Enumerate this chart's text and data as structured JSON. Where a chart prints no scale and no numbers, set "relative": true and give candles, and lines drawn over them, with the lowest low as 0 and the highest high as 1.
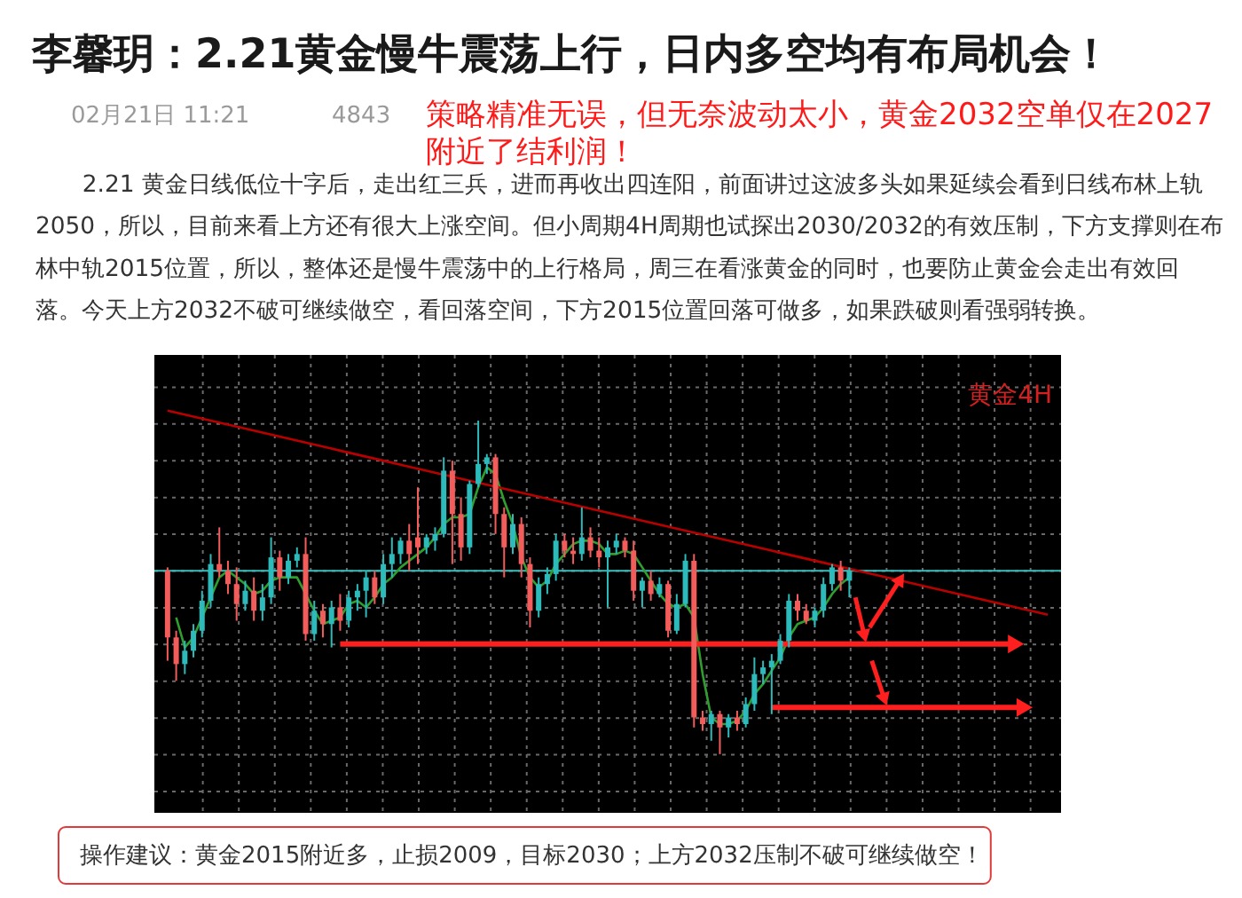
{
  "chart_data": {
    "type": "candlestick",
    "title": "李馨玥：2.21黄金慢牛震荡上行，日内多空均有布局机会！",
    "annotations": [
      "02月21日 11:21",
      "4843",
      "策略精准无误，但无奈波动太小，黄金2032空单仅在2027附近了结利润！",
      "2.21 黄金日线低位十字后，走出红三兵，进而再收出四连阳，前面讲过这波多头如果延续会看到日线布林上轨2050，所以，目前来看上方还有很大上涨空间。但小周期4H周期也试探出2030/2032的有效压制，下方支撑则在布林中轨2015位置，所以，整体还是慢牛震荡中的上行格局，周三在看涨黄金的同时，也要防止黄金会走出有效回落。今天上方2032不破可继续做空，看回落空间，下方2015位置回落可做多，如果跌破则看强弱转换。",
      "黄金4H",
      "操作建议：黄金2015附近多，止损2009，目标2030；上方2032压制不破可继续做空！"
    ],
    "relative": true,
    "grid": true,
    "categories": [
      null,
      null,
      null,
      null,
      null,
      null,
      null,
      null,
      null,
      null,
      null,
      null,
      null,
      null,
      null,
      null,
      null,
      null,
      null,
      null,
      null,
      null,
      null,
      null,
      null,
      null,
      null,
      null,
      null,
      null,
      null,
      null,
      null,
      null,
      null,
      null,
      null,
      null,
      null,
      null,
      null,
      null,
      null,
      null,
      null,
      null,
      null,
      null,
      null,
      null,
      null,
      null,
      null,
      null,
      null,
      null,
      null,
      null,
      null,
      null,
      null,
      null,
      null,
      null,
      null,
      null,
      null,
      null,
      null,
      null,
      null,
      null,
      null,
      null,
      null,
      null,
      null,
      null,
      null,
      null,
      null,
      null,
      null,
      null,
      null,
      null,
      null,
      null,
      null,
      null,
      null,
      null,
      null,
      null,
      null,
      null,
      null,
      null,
      null,
      null,
      null,
      null,
      null
    ],
    "ohlc": [
      [
        0.55,
        0.56,
        0.28,
        0.35
      ],
      [
        0.35,
        0.37,
        0.22,
        0.27
      ],
      [
        0.27,
        0.34,
        0.24,
        0.31
      ],
      [
        0.31,
        0.39,
        0.29,
        0.37
      ],
      [
        0.37,
        0.49,
        0.35,
        0.46
      ],
      [
        0.46,
        0.6,
        0.44,
        0.57
      ],
      [
        0.57,
        0.68,
        0.53,
        0.55
      ],
      [
        0.55,
        0.58,
        0.48,
        0.51
      ],
      [
        0.51,
        0.56,
        0.4,
        0.45
      ],
      [
        0.45,
        0.52,
        0.43,
        0.49
      ],
      [
        0.49,
        0.53,
        0.4,
        0.43
      ],
      [
        0.43,
        0.51,
        0.4,
        0.47
      ],
      [
        0.47,
        0.65,
        0.45,
        0.59
      ],
      [
        0.59,
        0.61,
        0.49,
        0.53
      ],
      [
        0.53,
        0.6,
        0.51,
        0.58
      ],
      [
        0.58,
        0.62,
        0.56,
        0.6
      ],
      [
        0.6,
        0.65,
        0.34,
        0.36
      ],
      [
        0.36,
        0.46,
        0.34,
        0.43
      ],
      [
        0.43,
        0.45,
        0.35,
        0.39
      ],
      [
        0.39,
        0.46,
        0.32,
        0.44
      ],
      [
        0.44,
        0.48,
        0.37,
        0.4
      ],
      [
        0.4,
        0.49,
        0.38,
        0.47
      ],
      [
        0.47,
        0.51,
        0.43,
        0.49
      ],
      [
        0.49,
        0.55,
        0.41,
        0.53
      ],
      [
        0.53,
        0.55,
        0.45,
        0.47
      ],
      [
        0.47,
        0.6,
        0.45,
        0.57
      ],
      [
        0.57,
        0.65,
        0.53,
        0.6
      ],
      [
        0.6,
        0.65,
        0.57,
        0.64
      ],
      [
        0.64,
        0.69,
        0.55,
        0.6
      ],
      [
        0.65,
        0.8,
        0.57,
        0.62
      ],
      [
        0.62,
        0.66,
        0.6,
        0.65
      ],
      [
        0.64,
        0.68,
        0.61,
        0.66
      ],
      [
        0.66,
        0.89,
        0.65,
        0.85
      ],
      [
        0.85,
        0.88,
        0.57,
        0.72
      ],
      [
        0.72,
        0.77,
        0.58,
        0.62
      ],
      [
        0.62,
        0.82,
        0.6,
        0.81
      ],
      [
        0.81,
        1.0,
        0.8,
        0.87
      ],
      [
        0.87,
        0.9,
        0.84,
        0.89
      ],
      [
        0.89,
        0.9,
        0.66,
        0.72
      ],
      [
        0.72,
        0.74,
        0.53,
        0.62
      ],
      [
        0.62,
        0.72,
        0.6,
        0.69
      ],
      [
        0.69,
        0.71,
        0.53,
        0.57
      ],
      [
        0.57,
        0.59,
        0.38,
        0.43
      ],
      [
        0.43,
        0.53,
        0.41,
        0.51
      ],
      [
        0.51,
        0.56,
        0.48,
        0.54
      ],
      [
        0.54,
        0.66,
        0.52,
        0.64
      ],
      [
        0.64,
        0.66,
        0.59,
        0.61
      ],
      [
        0.61,
        0.65,
        0.57,
        0.6
      ],
      [
        0.6,
        0.74,
        0.58,
        0.65
      ],
      [
        0.65,
        0.68,
        0.59,
        0.61
      ],
      [
        0.61,
        0.65,
        0.56,
        0.59
      ],
      [
        0.59,
        0.64,
        0.44,
        0.62
      ],
      [
        0.62,
        0.66,
        0.6,
        0.64
      ],
      [
        0.64,
        0.65,
        0.59,
        0.61
      ],
      [
        0.61,
        0.64,
        0.46,
        0.49
      ],
      [
        0.49,
        0.53,
        0.44,
        0.52
      ],
      [
        0.52,
        0.55,
        0.46,
        0.48
      ],
      [
        0.48,
        0.53,
        0.47,
        0.51
      ],
      [
        0.51,
        0.52,
        0.35,
        0.37
      ],
      [
        0.37,
        0.48,
        0.36,
        0.45
      ],
      [
        0.45,
        0.6,
        0.44,
        0.58
      ],
      [
        0.58,
        0.6,
        0.08,
        0.11
      ],
      [
        0.11,
        0.13,
        0.07,
        0.09
      ],
      [
        0.09,
        0.13,
        0.04,
        0.12
      ],
      [
        0.12,
        0.13,
        0.0,
        0.08
      ],
      [
        0.08,
        0.12,
        0.05,
        0.11
      ],
      [
        0.11,
        0.13,
        0.07,
        0.09
      ],
      [
        0.09,
        0.17,
        0.08,
        0.15
      ],
      [
        0.15,
        0.29,
        0.13,
        0.24
      ],
      [
        0.24,
        0.28,
        0.21,
        0.26
      ],
      [
        0.26,
        0.3,
        0.12,
        0.28
      ],
      [
        0.28,
        0.36,
        0.27,
        0.34
      ],
      [
        0.34,
        0.48,
        0.32,
        0.46
      ],
      [
        0.46,
        0.48,
        0.4,
        0.43
      ],
      [
        0.43,
        0.45,
        0.39,
        0.4
      ],
      [
        0.4,
        0.44,
        0.38,
        0.43
      ],
      [
        0.43,
        0.53,
        0.41,
        0.51
      ],
      [
        0.51,
        0.57,
        0.49,
        0.56
      ],
      [
        0.56,
        0.58,
        0.49,
        0.52
      ],
      [
        0.52,
        0.56,
        0.47,
        0.55
      ],
      null,
      null,
      null,
      null,
      null,
      null,
      null,
      null,
      null,
      null,
      null,
      null,
      null,
      null,
      null,
      null,
      null,
      null,
      null,
      null,
      null,
      null,
      null
    ],
    "colors": [
      "#f25c5a",
      "#f25c5a",
      "#2cbaba",
      "#2cbaba",
      "#2cbaba",
      "#2cbaba",
      "#f25c5a",
      "#f25c5a",
      "#f25c5a",
      "#2cbaba",
      "#f25c5a",
      "#2cbaba",
      "#2cbaba",
      "#f25c5a",
      "#2cbaba",
      "#2cbaba",
      "#f25c5a",
      "#2cbaba",
      "#f25c5a",
      "#2cbaba",
      "#f25c5a",
      "#2cbaba",
      "#2cbaba",
      "#2cbaba",
      "#f25c5a",
      "#2cbaba",
      "#2cbaba",
      "#2cbaba",
      "#f25c5a",
      "#f25c5a",
      "#2cbaba",
      "#2cbaba",
      "#2cbaba",
      "#f25c5a",
      "#f25c5a",
      "#2cbaba",
      "#2cbaba",
      "#2cbaba",
      "#f25c5a",
      "#f25c5a",
      "#2cbaba",
      "#f25c5a",
      "#f25c5a",
      "#2cbaba",
      "#2cbaba",
      "#2cbaba",
      "#f25c5a",
      "#f25c5a",
      "#2cbaba",
      "#f25c5a",
      "#f25c5a",
      "#2cbaba",
      "#2cbaba",
      "#f25c5a",
      "#f25c5a",
      "#2cbaba",
      "#f25c5a",
      "#2cbaba",
      "#f25c5a",
      "#2cbaba",
      "#2cbaba",
      "#f25c5a",
      "#f25c5a",
      "#2cbaba",
      "#f25c5a",
      "#2cbaba",
      "#f25c5a",
      "#2cbaba",
      "#2cbaba",
      "#2cbaba",
      "#2cbaba",
      "#2cbaba",
      "#2cbaba",
      "#f25c5a",
      "#f25c5a",
      "#2cbaba",
      "#2cbaba",
      "#2cbaba",
      "#f25c5a",
      "#2cbaba",
      null,
      null,
      null,
      null,
      null,
      null,
      null,
      null,
      null,
      null,
      null,
      null,
      null,
      null,
      null,
      null,
      null,
      null,
      null,
      null,
      null,
      null,
      null
    ],
    "series": [
      {
        "type": "line",
        "color": "#2f9e2f",
        "values": [
          null,
          0.41,
          0.32,
          0.35,
          0.41,
          0.47,
          0.53,
          0.55,
          0.53,
          0.51,
          0.48,
          0.49,
          0.52,
          0.53,
          0.53,
          0.53,
          0.48,
          0.43,
          0.39,
          0.4,
          0.41,
          0.45,
          0.46,
          0.44,
          0.47,
          0.51,
          0.53,
          0.56,
          0.58,
          0.6,
          0.62,
          0.65,
          0.69,
          0.71,
          0.71,
          0.72,
          0.8,
          0.86,
          0.84,
          0.76,
          0.69,
          0.59,
          0.53,
          0.5,
          0.52,
          0.57,
          0.6,
          0.63,
          0.64,
          0.64,
          0.63,
          0.6,
          0.6,
          0.61,
          0.6,
          0.56,
          0.52,
          0.48,
          0.45,
          0.44,
          0.45,
          0.41,
          0.24,
          0.11,
          0.09,
          0.09,
          0.1,
          0.13,
          0.18,
          0.21,
          0.25,
          0.29,
          0.35,
          0.39,
          0.4,
          0.41,
          0.44,
          0.48,
          0.51,
          0.53,
          null,
          null,
          null,
          null,
          null,
          null,
          null,
          null,
          null,
          null,
          null,
          null,
          null,
          null,
          null,
          null,
          null,
          null,
          null,
          null,
          null,
          null,
          null
        ]
      },
      {
        "type": "line",
        "color": "#b80000",
        "values": [
          1.03,
          1.024,
          1.018,
          1.012,
          1.006,
          1.0,
          0.994,
          0.988,
          0.982,
          0.976,
          0.97,
          0.964,
          0.958,
          0.952,
          0.946,
          0.94,
          0.934,
          0.928,
          0.922,
          0.916,
          0.91,
          0.904,
          0.898,
          0.892,
          0.886,
          0.88,
          0.874,
          0.868,
          0.862,
          0.856,
          0.85,
          0.844,
          0.838,
          0.832,
          0.826,
          0.82,
          0.814,
          0.808,
          0.802,
          0.796,
          0.79,
          0.784,
          0.778,
          0.772,
          0.766,
          0.76,
          0.754,
          0.748,
          0.742,
          0.736,
          0.73,
          0.724,
          0.718,
          0.712,
          0.706,
          0.7,
          0.694,
          0.688,
          0.682,
          0.676,
          0.67,
          0.664,
          0.658,
          0.652,
          0.646,
          0.64,
          0.634,
          0.628,
          0.622,
          0.616,
          0.61,
          0.604,
          0.598,
          0.592,
          0.586,
          0.58,
          0.574,
          0.568,
          0.562,
          0.556,
          0.55,
          0.544,
          0.538,
          0.532,
          0.526,
          0.52,
          0.514,
          0.508,
          0.502,
          0.496,
          0.49,
          0.484,
          0.478,
          0.472,
          0.466,
          0.46,
          0.454,
          0.448,
          0.442,
          0.436,
          0.43,
          0.424,
          0.418
        ]
      },
      {
        "type": "line",
        "color": "#ff1f1f",
        "values": [
          null,
          null,
          null,
          null,
          null,
          null,
          null,
          null,
          null,
          null,
          null,
          null,
          null,
          null,
          null,
          null,
          null,
          null,
          null,
          null,
          0.33,
          0.33,
          0.33,
          0.33,
          0.33,
          0.33,
          0.33,
          0.33,
          0.33,
          0.33,
          0.33,
          0.33,
          0.33,
          0.33,
          0.33,
          0.33,
          0.33,
          0.33,
          0.33,
          0.33,
          0.33,
          0.33,
          0.33,
          0.33,
          0.33,
          0.33,
          0.33,
          0.33,
          0.33,
          0.33,
          0.33,
          0.33,
          0.33,
          0.33,
          0.33,
          0.33,
          0.33,
          0.33,
          0.33,
          0.33,
          0.33,
          0.33,
          0.33,
          0.33,
          0.33,
          0.33,
          0.33,
          0.33,
          0.33,
          0.33,
          0.33,
          0.33,
          0.33,
          0.33,
          0.33,
          0.33,
          0.33,
          0.33,
          0.33,
          0.33,
          0.33,
          0.33,
          0.33,
          0.33,
          0.33,
          0.33,
          0.33,
          0.33,
          0.33,
          0.33,
          0.33,
          0.33,
          0.33,
          0.33,
          0.33,
          0.33,
          0.33,
          0.33,
          0.33,
          null,
          null,
          null,
          null
        ]
      },
      {
        "type": "line",
        "color": "#ff1f1f",
        "values": [
          null,
          null,
          null,
          null,
          null,
          null,
          null,
          null,
          null,
          null,
          null,
          null,
          null,
          null,
          null,
          null,
          null,
          null,
          null,
          null,
          null,
          null,
          null,
          null,
          null,
          null,
          null,
          null,
          null,
          null,
          null,
          null,
          null,
          null,
          null,
          null,
          null,
          null,
          null,
          null,
          null,
          null,
          null,
          null,
          null,
          null,
          null,
          null,
          null,
          null,
          null,
          null,
          null,
          null,
          null,
          null,
          null,
          null,
          null,
          null,
          null,
          null,
          null,
          null,
          null,
          null,
          null,
          null,
          null,
          null,
          0.14,
          0.14,
          0.14,
          0.14,
          0.14,
          0.14,
          0.14,
          0.14,
          0.14,
          0.14,
          0.14,
          0.14,
          0.14,
          0.14,
          0.14,
          0.14,
          0.14,
          0.14,
          0.14,
          0.14,
          0.14,
          0.14,
          0.14,
          0.14,
          0.14,
          0.14,
          0.14,
          0.14,
          0.14,
          0.14,
          null,
          null,
          null
        ]
      }
    ],
    "ref_lines": [
      {
        "axis": "y",
        "value": 0.55,
        "color": "#3dbdbd"
      }
    ]
  }
}
